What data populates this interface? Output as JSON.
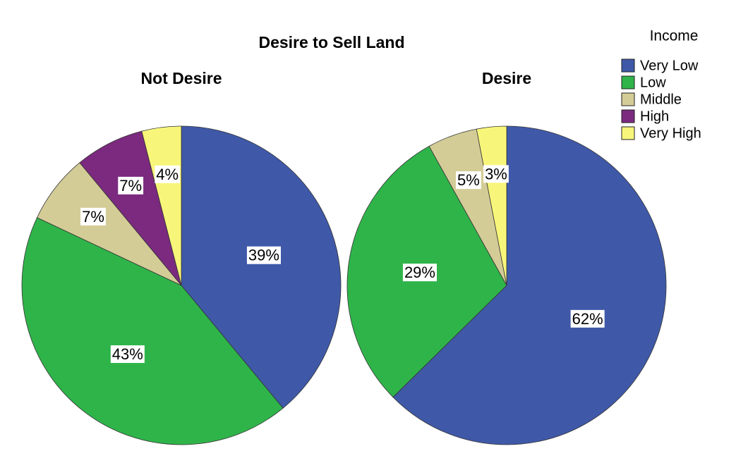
{
  "chart_data": {
    "type": "pie",
    "title": "Desire to Sell Land",
    "legend_title": "Income",
    "categories": [
      "Very Low",
      "Low",
      "Middle",
      "High",
      "Very High"
    ],
    "colors": [
      "#3f59a8",
      "#2fb44a",
      "#d4cc97",
      "#7b2a7f",
      "#f8f67a"
    ],
    "series": [
      {
        "name": "Not Desire",
        "values": [
          39,
          43,
          7,
          7,
          4
        ],
        "value_labels": [
          "39%",
          "43%",
          "7%",
          "7%",
          "4%"
        ]
      },
      {
        "name": "Desire",
        "values": [
          62,
          29,
          5,
          0,
          3
        ],
        "value_labels": [
          "62%",
          "29%",
          "5%",
          null,
          "3%"
        ]
      }
    ]
  }
}
